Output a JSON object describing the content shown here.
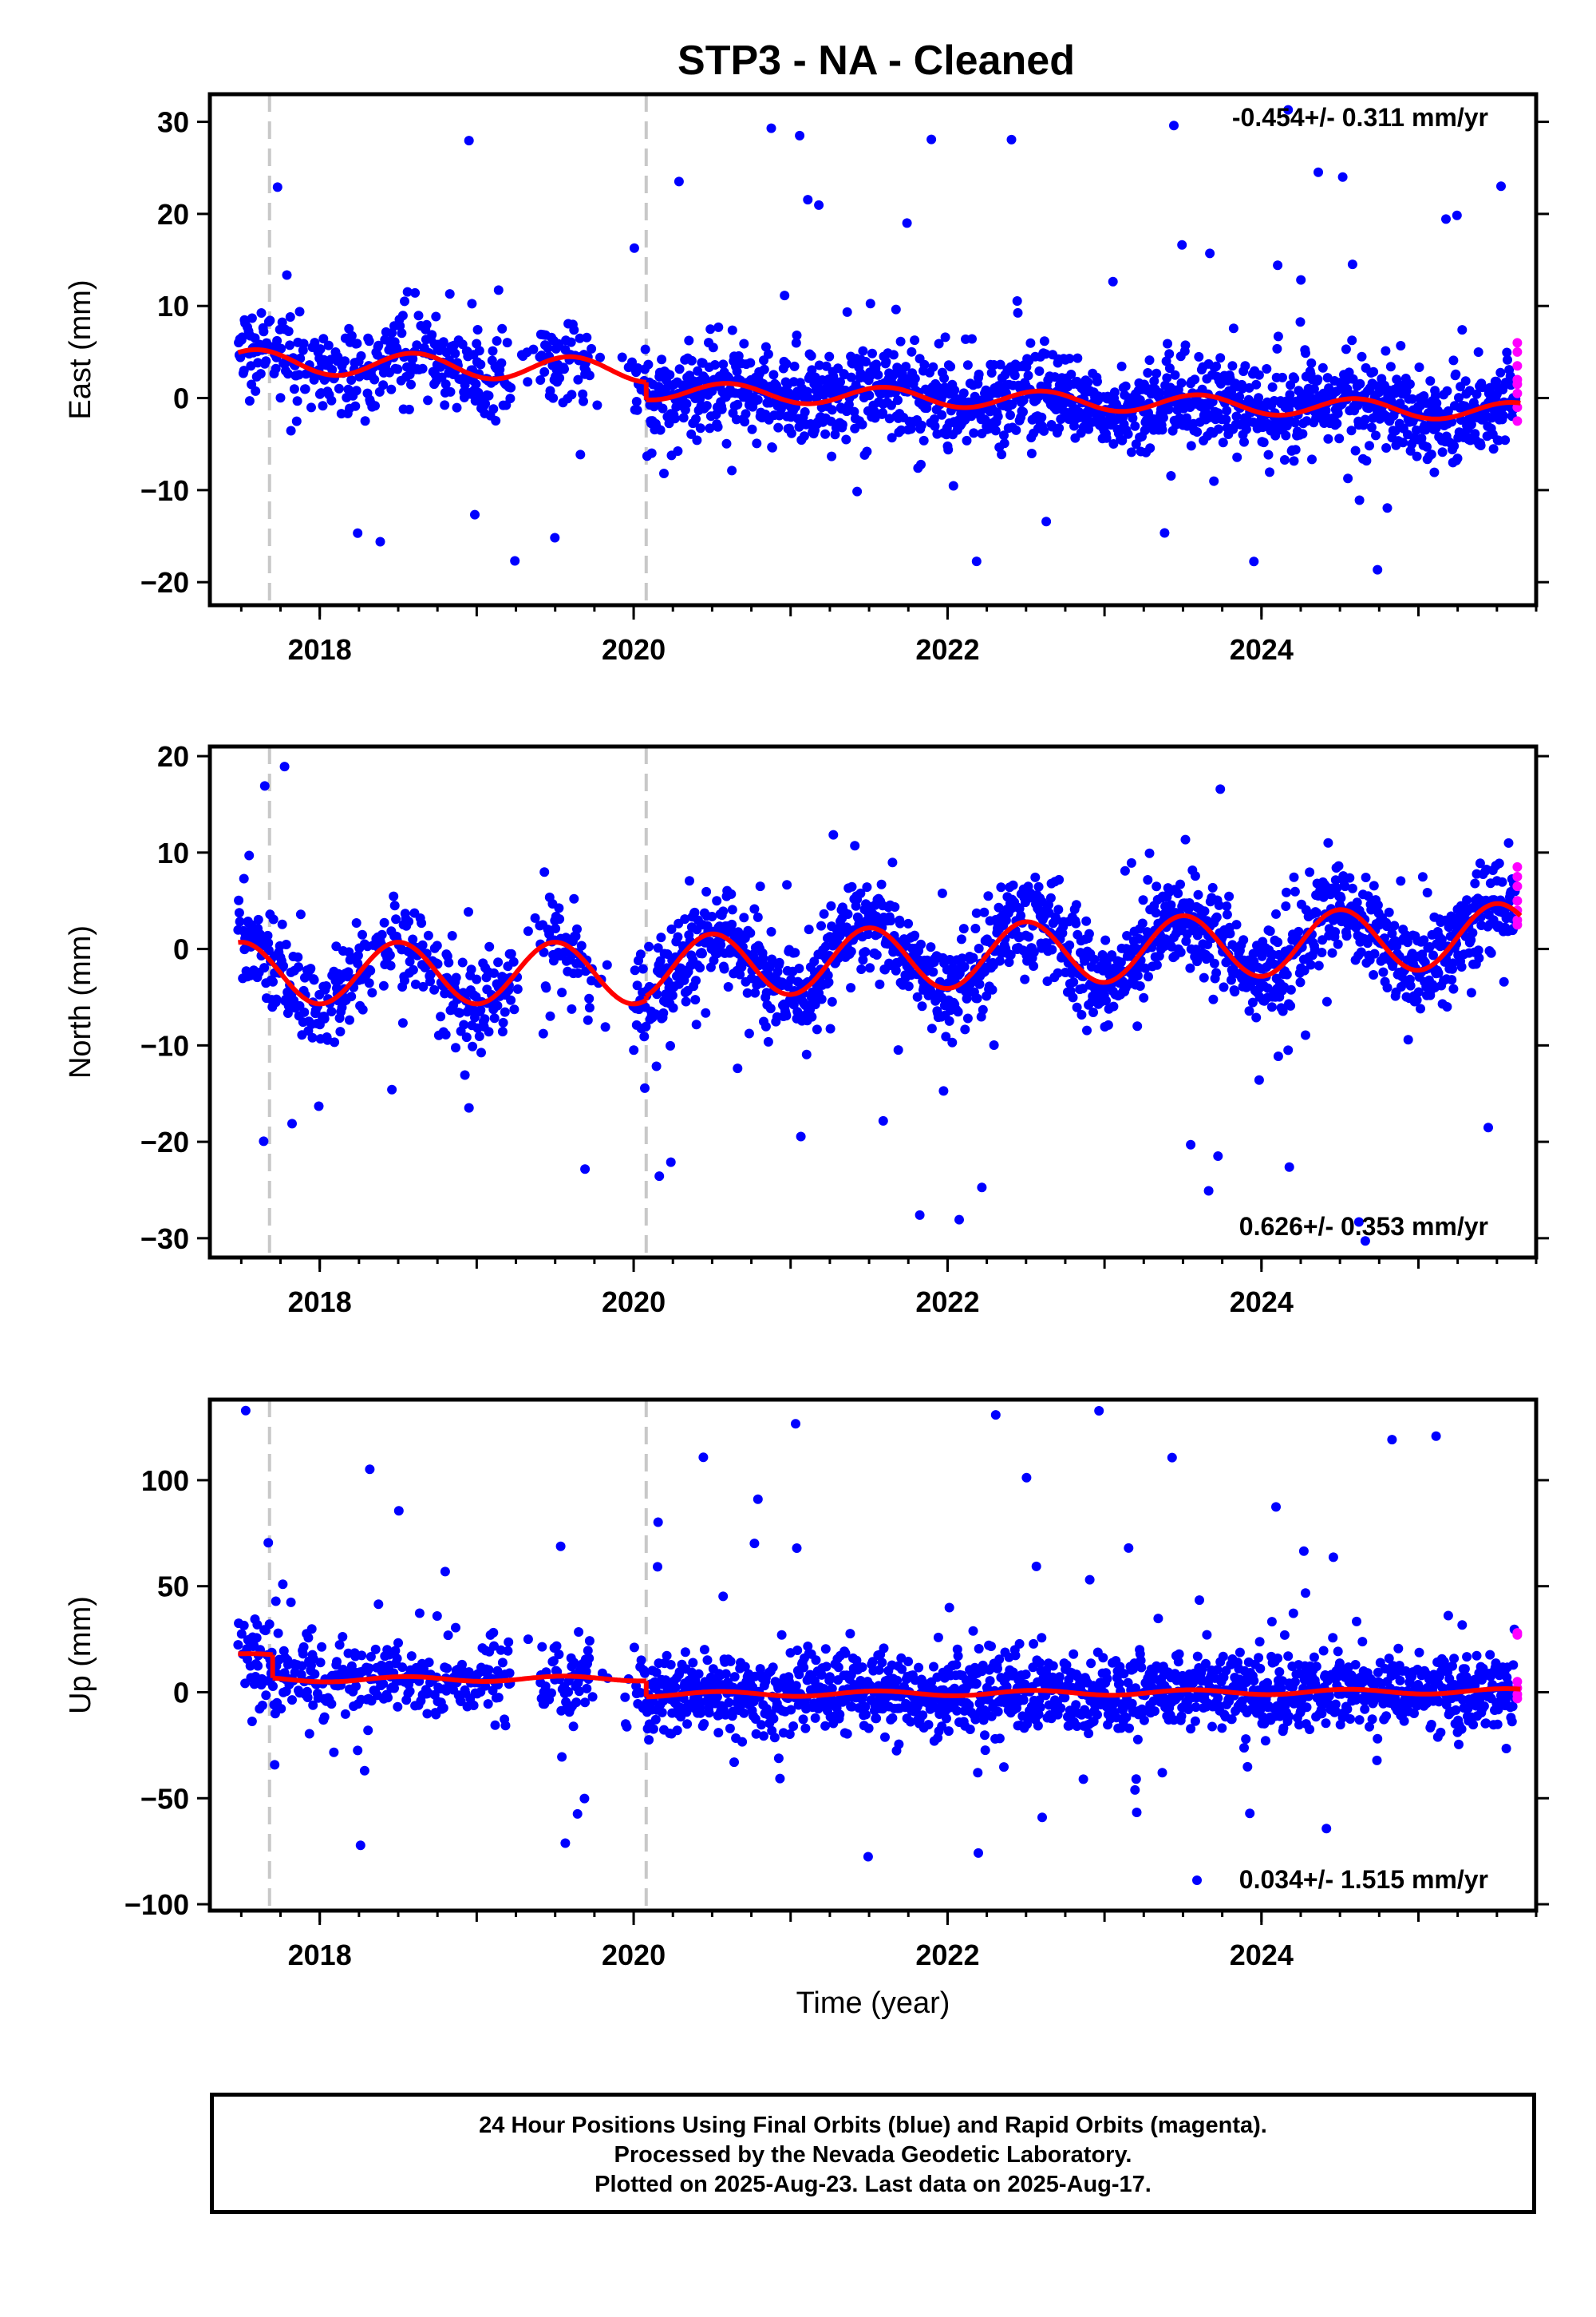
{
  "title": "STP3  - NA - Cleaned",
  "footer": {
    "line1": "24 Hour Positions Using Final Orbits (blue) and Rapid Orbits (magenta).",
    "line2": "Processed by the Nevada Geodetic Laboratory.",
    "line3": "Plotted on 2025-Aug-23. Last data on 2025-Aug-17."
  },
  "colors": {
    "final": "#0000ff",
    "rapid": "#ff00ff",
    "model": "#ff0000",
    "breaks": "#c8c8c8"
  },
  "chart_data": [
    {
      "type": "scatter",
      "ylabel": "East (mm)",
      "xlabel": "",
      "xlim": [
        2017.3,
        2025.75
      ],
      "ylim": [
        -22.5,
        33
      ],
      "xticks": [
        2018,
        2020,
        2022,
        2024
      ],
      "yticks": [
        -20,
        -10,
        0,
        10,
        20,
        30
      ],
      "rate_label": "-0.454+/- 0.311 mm/yr",
      "rate_position": "top-right",
      "vertical_breaks": [
        2017.68,
        2020.08
      ],
      "seasonal": {
        "amp_before": 1.3,
        "amp_after": 1.0,
        "phase_peak": 0.6
      },
      "trend_segments": [
        {
          "x0": 2017.48,
          "x1": 2020.08,
          "y0": 4.0,
          "y1": 3.0
        },
        {
          "x0": 2020.08,
          "x1": 2025.65,
          "y0": 0.8,
          "y1": -1.5
        }
      ],
      "scatter_sigma": 2.2,
      "outlier_range": [
        -21,
        32
      ],
      "rapid_values": [
        6,
        5,
        3.5,
        2,
        0.5,
        -1,
        -2.5,
        1.5
      ]
    },
    {
      "type": "scatter",
      "ylabel": "North (mm)",
      "xlabel": "",
      "xlim": [
        2017.3,
        2025.75
      ],
      "ylim": [
        -32,
        21
      ],
      "xticks": [
        2018,
        2020,
        2022,
        2024
      ],
      "yticks": [
        -30,
        -20,
        -10,
        0,
        10,
        20
      ],
      "rate_label": "0.626+/- 0.353 mm/yr",
      "rate_position": "bottom-right",
      "vertical_breaks": [
        2017.68,
        2020.08
      ],
      "seasonal": {
        "amp_before": 3.2,
        "amp_after": 3.3,
        "phase_peak": 0.5
      },
      "trend_segments": [
        {
          "x0": 2017.48,
          "x1": 2020.08,
          "y0": -2.5,
          "y1": -2.5
        },
        {
          "x0": 2020.08,
          "x1": 2025.65,
          "y0": -2.0,
          "y1": 1.5
        }
      ],
      "scatter_sigma": 2.3,
      "outlier_range": [
        -31,
        19
      ],
      "rapid_values": [
        8.5,
        7.5,
        6.5,
        5,
        4,
        3,
        2.5
      ]
    },
    {
      "type": "scatter",
      "ylabel": "Up (mm)",
      "xlabel": "Time (year)",
      "xlim": [
        2017.3,
        2025.75
      ],
      "ylim": [
        -103,
        138
      ],
      "xticks": [
        2018,
        2020,
        2022,
        2024
      ],
      "yticks": [
        -100,
        -50,
        0,
        50,
        100
      ],
      "rate_label": "0.034+/- 1.515 mm/yr",
      "rate_position": "bottom-right",
      "vertical_breaks": [
        2017.68,
        2020.08
      ],
      "seasonal": {
        "amp_before": 1.2,
        "amp_after": 1.2,
        "phase_peak": 0.55
      },
      "trend_segments": [
        {
          "x0": 2017.48,
          "x1": 2017.7,
          "y0": 17.0,
          "y1": 17.0
        },
        {
          "x0": 2017.7,
          "x1": 2020.08,
          "y0": 6.0,
          "y1": 6.5
        },
        {
          "x0": 2020.08,
          "x1": 2025.65,
          "y0": -1.0,
          "y1": 0.5
        }
      ],
      "scatter_sigma": 9.0,
      "outlier_range": [
        -78,
        133
      ],
      "rapid_values": [
        28,
        27,
        5,
        2,
        -1,
        -3
      ]
    }
  ]
}
